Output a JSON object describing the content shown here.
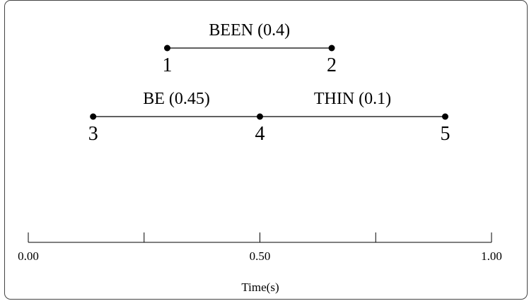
{
  "lattice": {
    "arcs": [
      {
        "word": "BEEN",
        "score": "(0.4)",
        "from": "1",
        "to": "2"
      },
      {
        "word": "BE",
        "score": "(0.45)",
        "from": "3",
        "to": "4"
      },
      {
        "word": "THIN",
        "score": "(0.1)",
        "from": "4",
        "to": "5"
      }
    ],
    "nodes": [
      {
        "id": "1",
        "time": 0.3,
        "row": 0
      },
      {
        "id": "2",
        "time": 0.655,
        "row": 0
      },
      {
        "id": "3",
        "time": 0.14,
        "row": 1
      },
      {
        "id": "4",
        "time": 0.5,
        "row": 1
      },
      {
        "id": "5",
        "time": 0.9,
        "row": 1
      }
    ]
  },
  "axis": {
    "title": "Time(s)",
    "min": 0,
    "max": 1,
    "ticks": [
      0,
      0.25,
      0.5,
      0.75,
      1
    ],
    "tick_labels": [
      {
        "value": 0,
        "label": "0.00"
      },
      {
        "value": 0.5,
        "label": "0.50"
      },
      {
        "value": 1,
        "label": "1.00"
      }
    ]
  }
}
